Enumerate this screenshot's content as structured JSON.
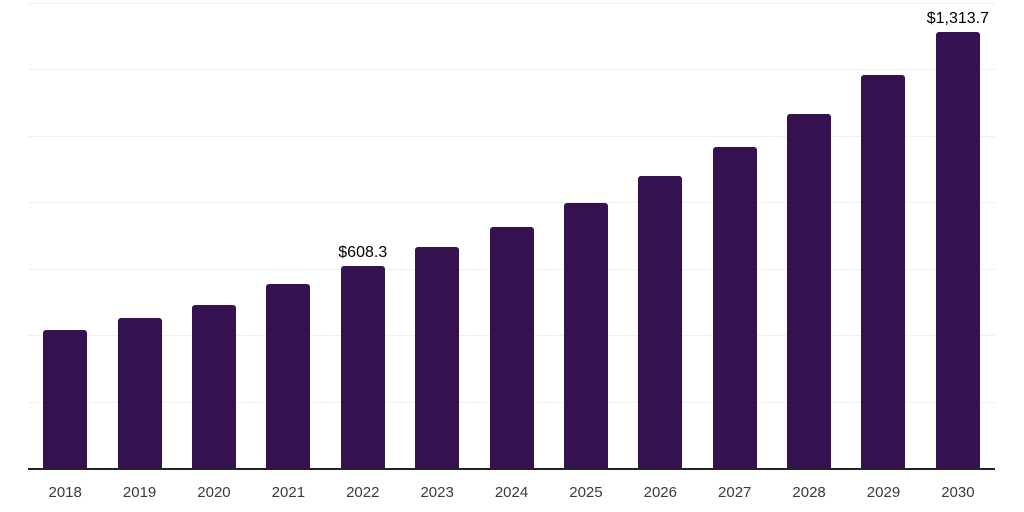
{
  "chart": {
    "background_color": "#ffffff",
    "bar_color": "#361150",
    "gridline_color": "#efefef",
    "axis_line_color": "#242424",
    "tick_label_color": "#3a3a3a",
    "data_label_color": "#000000"
  },
  "chart_data": {
    "type": "bar",
    "categories": [
      "2018",
      "2019",
      "2020",
      "2021",
      "2022",
      "2023",
      "2024",
      "2025",
      "2026",
      "2027",
      "2028",
      "2029",
      "2030"
    ],
    "values": [
      415,
      451,
      490,
      555,
      608.3,
      665,
      725,
      797,
      880,
      967,
      1065,
      1184,
      1313.7
    ],
    "data_labels": {
      "2022": "$608.3",
      "2030": "$1,313.7"
    },
    "xlabel": "",
    "ylabel": "",
    "ylim": [
      0,
      1400
    ],
    "gridline_step": 200,
    "grid": "horizontal only, no y-axis tick labels",
    "legend": "none"
  }
}
